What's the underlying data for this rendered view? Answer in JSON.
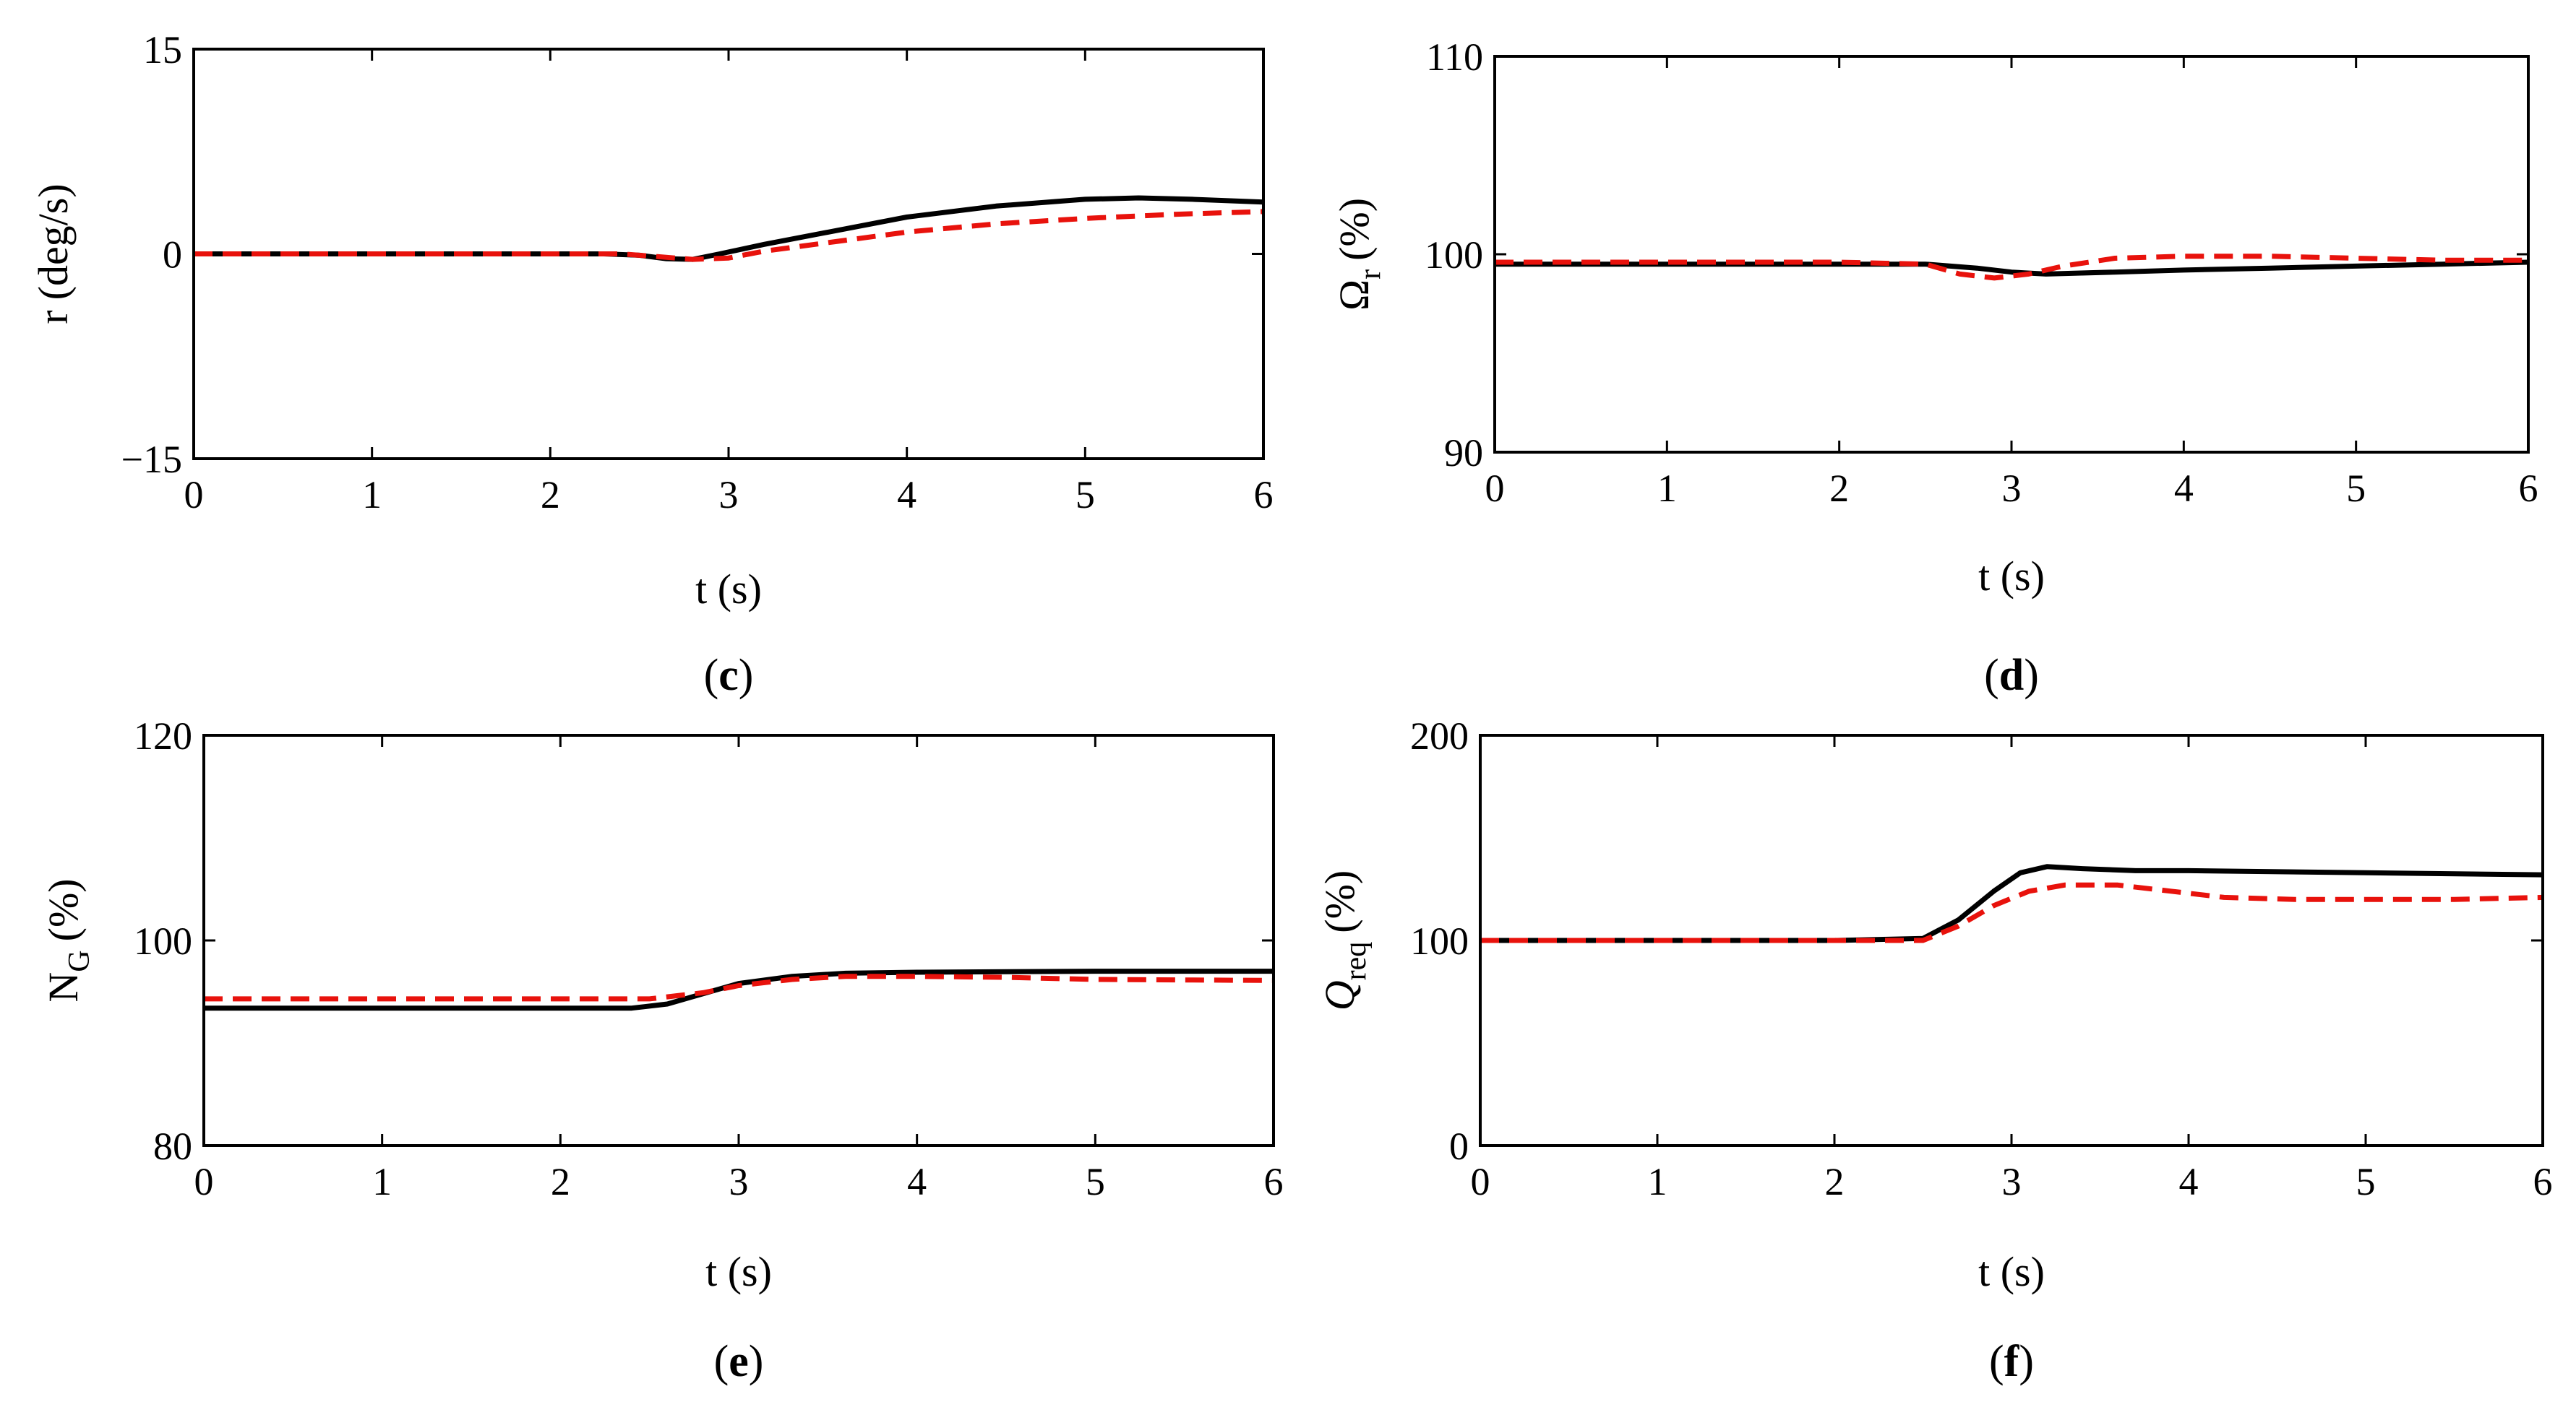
{
  "chart_data": [
    {
      "type": "line",
      "panel_label": "c",
      "xlabel": "t (s)",
      "ylabel": "r (deg/s)",
      "ylabel_main": "r",
      "ylabel_sub": "",
      "ylabel_unit": "(deg/s)",
      "xlim": [
        0,
        6
      ],
      "ylim": [
        -15,
        15
      ],
      "xticks": [
        0,
        1,
        2,
        3,
        4,
        5,
        6
      ],
      "xtick_labels": [
        "0",
        "1",
        "2",
        "3",
        "4",
        "5",
        "6"
      ],
      "yticks": [
        -15,
        0,
        15
      ],
      "ytick_labels": [
        "−15",
        "0",
        "15"
      ],
      "series": [
        {
          "name": "solid",
          "color": "#000000",
          "dashed": false,
          "x": [
            0,
            1,
            2,
            2.3,
            2.5,
            2.65,
            2.8,
            2.95,
            3.2,
            3.6,
            4,
            4.5,
            5,
            5.3,
            5.6,
            6
          ],
          "y": [
            0,
            0,
            0,
            0,
            -0.1,
            -0.35,
            -0.4,
            0,
            0.7,
            1.7,
            2.7,
            3.5,
            4.0,
            4.1,
            4.0,
            3.8
          ]
        },
        {
          "name": "dashed",
          "color": "#e8120c",
          "dashed": true,
          "x": [
            0,
            1,
            2,
            2.4,
            2.6,
            2.8,
            3.0,
            3.2,
            3.6,
            4,
            4.5,
            5,
            5.5,
            6
          ],
          "y": [
            0,
            0,
            0,
            0,
            -0.2,
            -0.4,
            -0.3,
            0.2,
            0.9,
            1.6,
            2.2,
            2.6,
            2.9,
            3.1
          ]
        }
      ]
    },
    {
      "type": "line",
      "panel_label": "d",
      "xlabel": "t (s)",
      "ylabel": "Ωr (%)",
      "ylabel_main": "Ω",
      "ylabel_sub": "r",
      "ylabel_unit": "(%)",
      "xlim": [
        0,
        6
      ],
      "ylim": [
        90,
        110
      ],
      "xticks": [
        0,
        1,
        2,
        3,
        4,
        5,
        6
      ],
      "xtick_labels": [
        "0",
        "1",
        "2",
        "3",
        "4",
        "5",
        "6"
      ],
      "yticks": [
        90,
        100,
        110
      ],
      "ytick_labels": [
        "90",
        "100",
        "110"
      ],
      "series": [
        {
          "name": "solid",
          "color": "#000000",
          "dashed": false,
          "x": [
            0,
            1,
            2,
            2.5,
            2.8,
            3.0,
            3.2,
            3.6,
            4,
            4.5,
            5,
            5.5,
            6
          ],
          "y": [
            99.5,
            99.5,
            99.5,
            99.5,
            99.3,
            99.1,
            99.0,
            99.1,
            99.2,
            99.3,
            99.4,
            99.5,
            99.6
          ]
        },
        {
          "name": "dashed",
          "color": "#e8120c",
          "dashed": true,
          "x": [
            0,
            1,
            2,
            2.5,
            2.7,
            2.9,
            3.1,
            3.3,
            3.6,
            4,
            4.5,
            5,
            5.5,
            6
          ],
          "y": [
            99.6,
            99.6,
            99.6,
            99.5,
            99.0,
            98.8,
            99.0,
            99.4,
            99.8,
            99.9,
            99.9,
            99.8,
            99.7,
            99.7
          ]
        }
      ]
    },
    {
      "type": "line",
      "panel_label": "e",
      "xlabel": "t (s)",
      "ylabel": "NG (%)",
      "ylabel_main": "N",
      "ylabel_sub": "G",
      "ylabel_unit": "(%)",
      "xlim": [
        0,
        6
      ],
      "ylim": [
        80,
        120
      ],
      "xticks": [
        0,
        1,
        2,
        3,
        4,
        5,
        6
      ],
      "xtick_labels": [
        "0",
        "1",
        "2",
        "3",
        "4",
        "5",
        "6"
      ],
      "yticks": [
        80,
        100,
        120
      ],
      "ytick_labels": [
        "80",
        "100",
        "120"
      ],
      "series": [
        {
          "name": "solid",
          "color": "#000000",
          "dashed": false,
          "x": [
            0,
            1,
            2,
            2.4,
            2.6,
            2.8,
            3.0,
            3.3,
            3.6,
            4,
            5,
            6
          ],
          "y": [
            93.4,
            93.4,
            93.4,
            93.4,
            93.8,
            94.8,
            95.8,
            96.5,
            96.8,
            96.9,
            97.0,
            97.0
          ]
        },
        {
          "name": "dashed",
          "color": "#e8120c",
          "dashed": true,
          "x": [
            0,
            1,
            2,
            2.5,
            2.8,
            3.0,
            3.3,
            3.6,
            4,
            4.5,
            5,
            6
          ],
          "y": [
            94.3,
            94.3,
            94.3,
            94.3,
            94.9,
            95.6,
            96.2,
            96.5,
            96.5,
            96.4,
            96.2,
            96.1
          ]
        }
      ]
    },
    {
      "type": "line",
      "panel_label": "f",
      "xlabel": "t (s)",
      "ylabel": "Qreq (%)",
      "ylabel_main": "Q",
      "ylabel_sub": "req",
      "ylabel_unit": "(%)",
      "xlim": [
        0,
        6
      ],
      "ylim": [
        0,
        200
      ],
      "xticks": [
        0,
        1,
        2,
        3,
        4,
        5,
        6
      ],
      "xtick_labels": [
        "0",
        "1",
        "2",
        "3",
        "4",
        "5",
        "6"
      ],
      "yticks": [
        0,
        100,
        200
      ],
      "ytick_labels": [
        "0",
        "100",
        "200"
      ],
      "series": [
        {
          "name": "solid",
          "color": "#000000",
          "dashed": false,
          "x": [
            0,
            1,
            2,
            2.5,
            2.7,
            2.9,
            3.05,
            3.2,
            3.4,
            3.7,
            4,
            5,
            6
          ],
          "y": [
            100,
            100,
            100,
            101,
            110,
            124,
            133,
            136,
            135,
            134,
            134,
            133,
            132
          ]
        },
        {
          "name": "dashed",
          "color": "#e8120c",
          "dashed": true,
          "x": [
            0,
            1,
            2,
            2.5,
            2.7,
            2.9,
            3.1,
            3.3,
            3.6,
            3.9,
            4.2,
            4.6,
            5,
            5.5,
            6
          ],
          "y": [
            100,
            100,
            100,
            100,
            107,
            117,
            124,
            127,
            127,
            124,
            121,
            120,
            120,
            120,
            121
          ]
        }
      ]
    }
  ]
}
